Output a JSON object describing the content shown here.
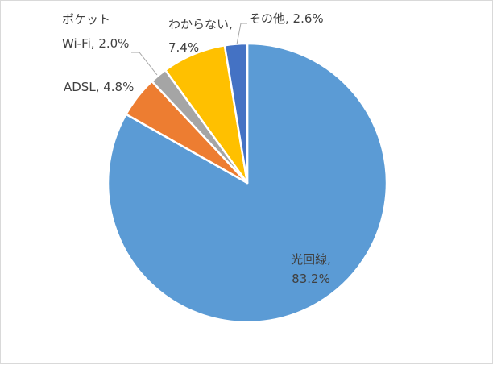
{
  "chart_data": {
    "type": "pie",
    "title": "",
    "legend": "none",
    "start_angle_deg": 0,
    "direction": "clockwise",
    "slices": [
      {
        "name": "光回線",
        "value": 83.2,
        "color": "#5b9bd5",
        "label_lines": [
          "光回線,",
          "83.2%"
        ]
      },
      {
        "name": "ADSL",
        "value": 4.8,
        "color": "#ed7d31",
        "label_lines": [
          "ADSL, 4.8%"
        ]
      },
      {
        "name": "ポケットWi-Fi",
        "value": 2.0,
        "color": "#a5a5a5",
        "label_lines": [
          "ポケット",
          "Wi-Fi, 2.0%"
        ]
      },
      {
        "name": "わからない",
        "value": 7.4,
        "color": "#ffc000",
        "label_lines": [
          "わからない,",
          "7.4%"
        ]
      },
      {
        "name": "その他",
        "value": 2.6,
        "color": "#4472c4",
        "label_lines": [
          "その他, 2.6%"
        ]
      }
    ]
  }
}
